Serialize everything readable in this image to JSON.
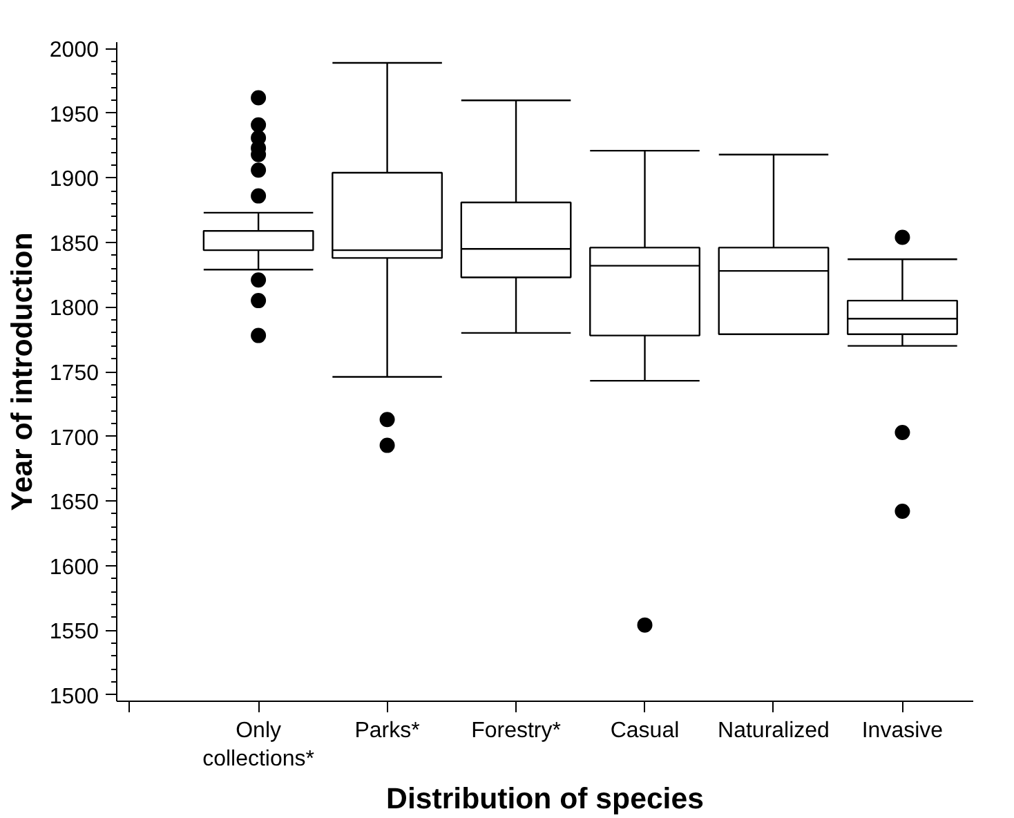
{
  "chart_data": {
    "type": "box",
    "xlabel": "Distribution of species",
    "ylabel": "Year of introduction",
    "categories": [
      "Only collections*",
      "Parks*",
      "Forestry*",
      "Casual",
      "Naturalized",
      "Invasive"
    ],
    "boxes": [
      {
        "low": 1829,
        "q1": 1844,
        "median": 1859,
        "q3": 1859,
        "high": 1873,
        "outliers": [
          1962,
          1941,
          1931,
          1923,
          1918,
          1906,
          1886,
          1821,
          1805,
          1778
        ]
      },
      {
        "low": 1746,
        "q1": 1838,
        "median": 1844,
        "q3": 1904,
        "high": 1989,
        "outliers": [
          1713,
          1693
        ]
      },
      {
        "low": 1780,
        "q1": 1823,
        "median": 1845,
        "q3": 1881,
        "high": 1960
      },
      {
        "low": 1743,
        "q1": 1778,
        "median": 1832,
        "q3": 1846,
        "high": 1921,
        "outliers": [
          1554
        ]
      },
      {
        "low": 1779,
        "q1": 1779,
        "median": 1828,
        "q3": 1846,
        "high": 1918
      },
      {
        "low": 1770,
        "q1": 1779,
        "median": 1791,
        "q3": 1805,
        "high": 1837,
        "outliers": [
          1854,
          1703,
          1642
        ]
      }
    ],
    "color": "#000000",
    "ylim": [
      1495,
      2005
    ],
    "yticks": [
      1500,
      1550,
      1600,
      1650,
      1700,
      1750,
      1800,
      1850,
      1900,
      1950,
      2000
    ],
    "grid": false
  }
}
